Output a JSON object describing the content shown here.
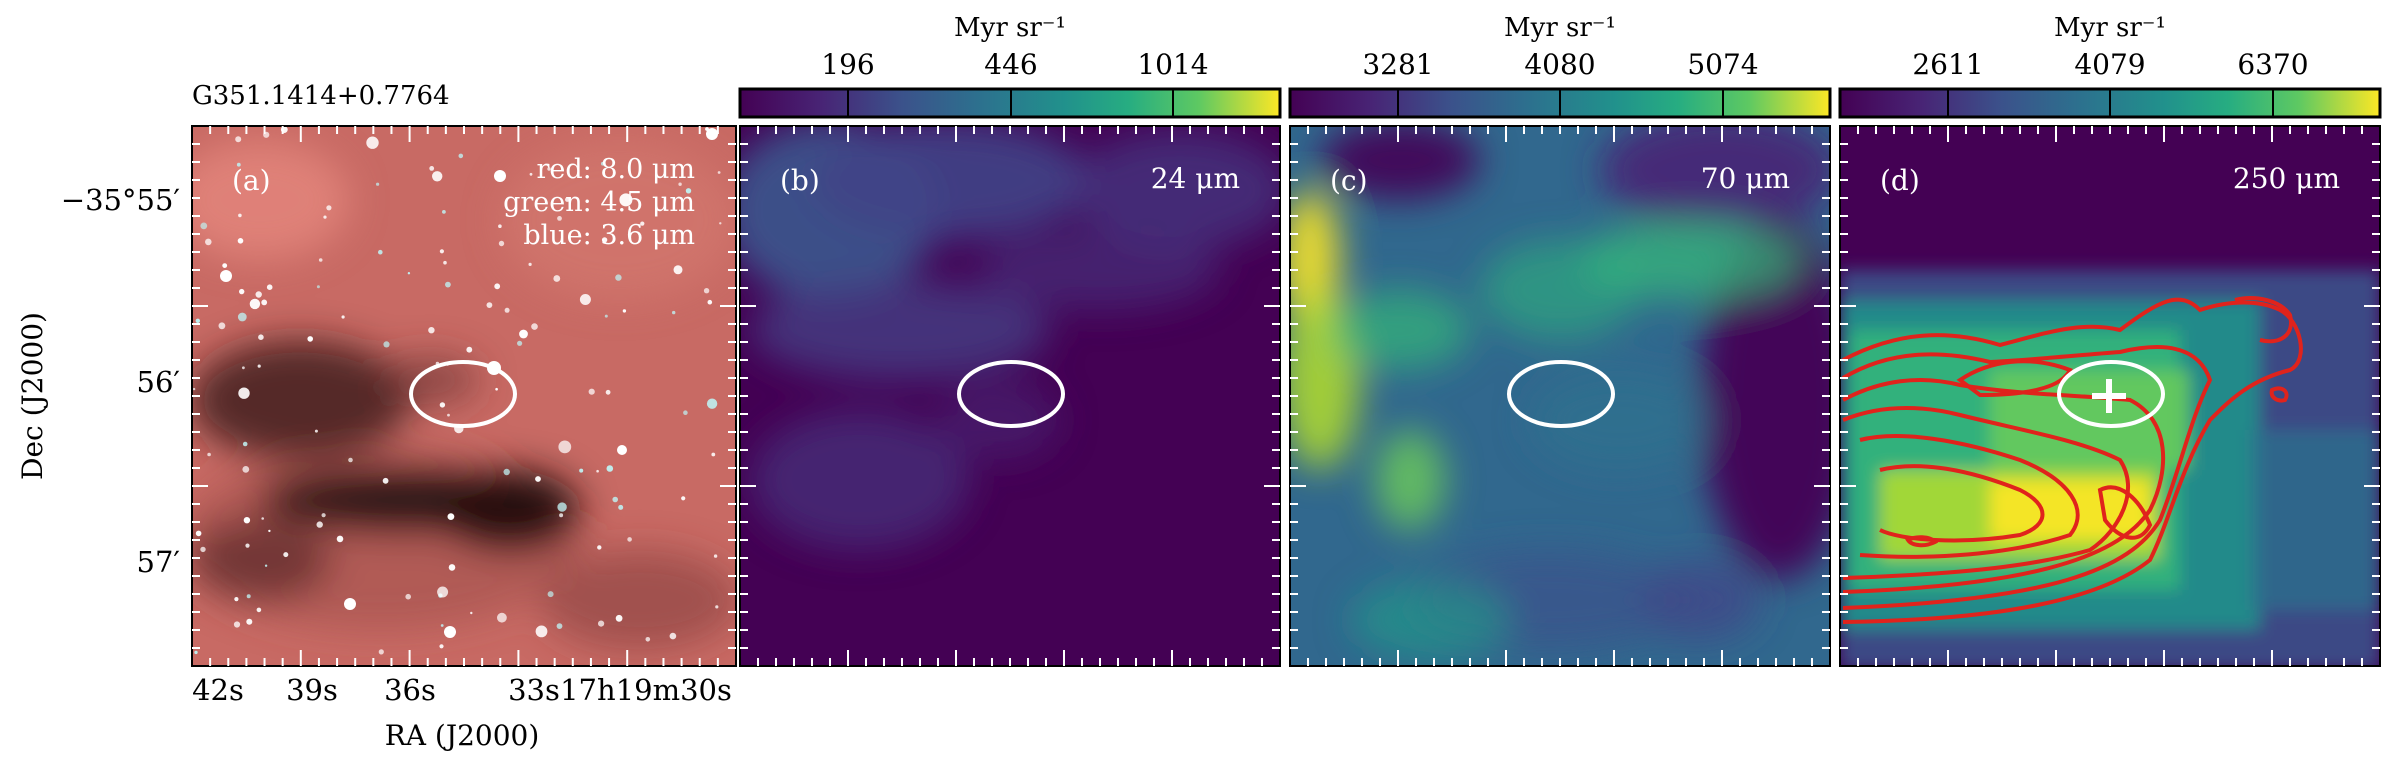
{
  "figure": {
    "source_name": "G351.1414+0.7764",
    "y_axis_label": "Dec (J2000)",
    "x_axis_label": "RA (J2000)",
    "y_ticks": [
      "−35°55′",
      "56′",
      "57′"
    ],
    "x_ticks": [
      "42s",
      "39s",
      "36s",
      "33s",
      "17h19m30s"
    ]
  },
  "panels": [
    {
      "id": "a",
      "label": "(a)",
      "band_lines": [
        "red: 8.0 μm",
        "green: 4.5 μm",
        "blue: 3.6 μm"
      ],
      "colormap": "rgb-composite"
    },
    {
      "id": "b",
      "label": "(b)",
      "wavelength": "24 μm",
      "colorbar": {
        "unit": "Myr sr⁻¹",
        "ticks": [
          "196",
          "446",
          "1014"
        ]
      },
      "colormap": "viridis"
    },
    {
      "id": "c",
      "label": "(c)",
      "wavelength": "70 μm",
      "colorbar": {
        "unit": "Myr sr⁻¹",
        "ticks": [
          "3281",
          "4080",
          "5074"
        ]
      },
      "colormap": "viridis"
    },
    {
      "id": "d",
      "label": "(d)",
      "wavelength": "250 μm",
      "colorbar": {
        "unit": "Myr sr⁻¹",
        "ticks": [
          "2611",
          "4079",
          "6370"
        ]
      },
      "colormap": "viridis",
      "contour_color": "#e0231c",
      "marker": "plus"
    }
  ],
  "colors": {
    "viridis_low": "#440154",
    "viridis_mid": "#21918c",
    "viridis_high": "#fde725",
    "rgb_background": "#c86a64",
    "ellipse": "#ffffff",
    "contour": "#e0231c"
  }
}
